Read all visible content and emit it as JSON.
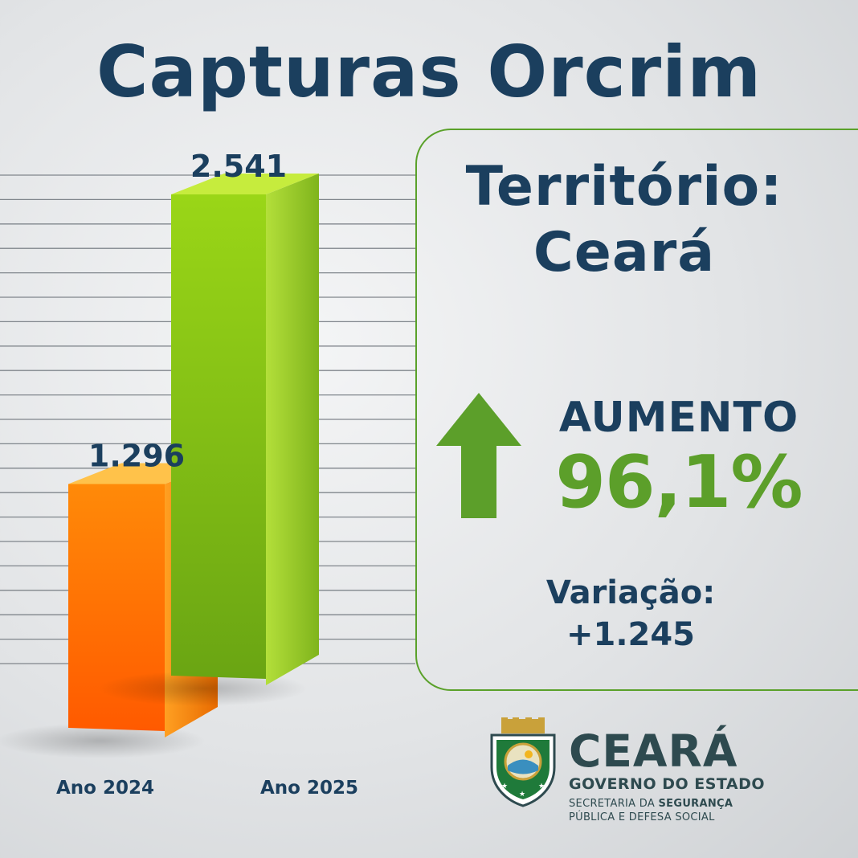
{
  "title": "Capturas Orcrim",
  "chart_data": {
    "type": "bar",
    "categories": [
      "Ano 2024",
      "Ano 2025"
    ],
    "values": [
      1296,
      2541
    ],
    "value_labels": [
      "1.296",
      "2.541"
    ],
    "ylim": [
      0,
      2700
    ],
    "grid": true,
    "colors": [
      "#ff7a00",
      "#8ccc1a"
    ]
  },
  "panel": {
    "territory_line1": "Território:",
    "territory_line2": "Ceará",
    "trend_label": "AUMENTO",
    "trend_value": "96,1%",
    "variation_label": "Variação:",
    "variation_value": "+1.245",
    "accent_color": "#5c9f2a",
    "arrow_icon": "arrow-up-icon"
  },
  "logo": {
    "name": "CEARÁ",
    "subtitle": "GOVERNO DO ESTADO",
    "dept_prefix": "SECRETARIA DA ",
    "dept_bold": "SEGURANÇA",
    "dept_line2": "PÚBLICA E DEFESA SOCIAL",
    "crest_icon": "state-coat-of-arms-icon"
  }
}
